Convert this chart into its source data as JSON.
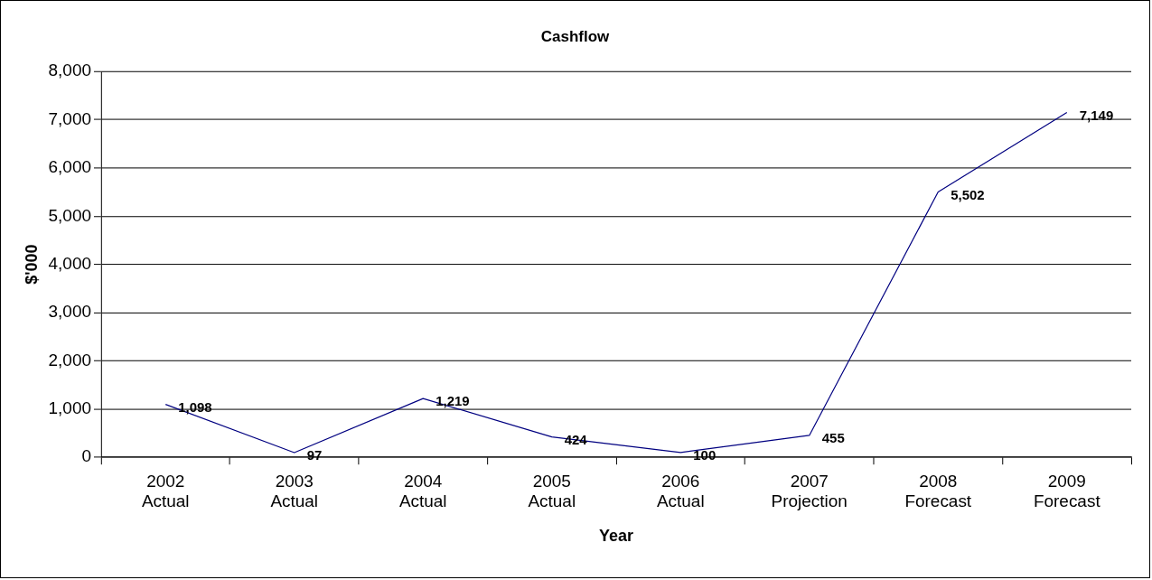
{
  "chart_data": {
    "type": "line",
    "title": "Cashflow",
    "xlabel": "Year",
    "ylabel": "$'000",
    "categories": [
      "2002\nActual",
      "2003\nActual",
      "2004\nActual",
      "2005\nActual",
      "2006\nActual",
      "2007\nProjection",
      "2008\nForecast",
      "2009\nForecast"
    ],
    "series": [
      {
        "color": "#000080",
        "values": [
          1098,
          97,
          1219,
          424,
          100,
          455,
          5502,
          7149
        ],
        "value_labels": [
          "1,098",
          "97",
          "1,219",
          "424",
          "100",
          "455",
          "5,502",
          "7,149"
        ]
      }
    ],
    "ylim": [
      0,
      8000
    ],
    "yticks": [
      {
        "value": 0,
        "label": "0"
      },
      {
        "value": 1000,
        "label": "1,000"
      },
      {
        "value": 2000,
        "label": "2,000"
      },
      {
        "value": 3000,
        "label": "3,000"
      },
      {
        "value": 4000,
        "label": "4,000"
      },
      {
        "value": 5000,
        "label": "5,000"
      },
      {
        "value": 6000,
        "label": "6,000"
      },
      {
        "value": 7000,
        "label": "7,000"
      },
      {
        "value": 8000,
        "label": "8,000"
      }
    ],
    "grid": "y",
    "legend": false,
    "marker": "none",
    "line_style": "solid"
  }
}
